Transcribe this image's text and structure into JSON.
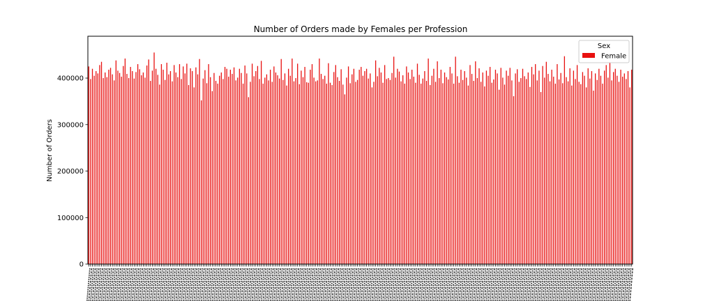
{
  "chart_data": {
    "type": "bar",
    "title": "Number of Orders made by Females per Profession",
    "xlabel": "",
    "ylabel": "Number of Orders",
    "ylim": [
      0,
      490000
    ],
    "yticks": [
      0,
      100000,
      200000,
      300000,
      400000
    ],
    "ytick_labels": [
      "0",
      "100000",
      "200000",
      "300000",
      "400000"
    ],
    "grid": false,
    "legend": {
      "title": "Sex",
      "placement": "top-right",
      "entries": [
        {
          "label": "Female",
          "color": "#e8100f"
        }
      ]
    },
    "bar_color": "#e8100f",
    "bar_count": 300,
    "values_note_min": 352000,
    "values_note_max": 455000,
    "series": [
      {
        "name": "Female",
        "values": [
          425000,
          398000,
          420000,
          405000,
          415000,
          410000,
          428000,
          435000,
          400000,
          412000,
          402000,
          418000,
          422000,
          408000,
          395000,
          438000,
          416000,
          411000,
          403000,
          426000,
          442000,
          409000,
          400000,
          424000,
          415000,
          399000,
          413000,
          430000,
          419000,
          406000,
          412000,
          401000,
          427000,
          440000,
          394000,
          416000,
          455000,
          420000,
          407000,
          386000,
          430000,
          418000,
          396000,
          433000,
          408000,
          415000,
          393000,
          428000,
          412000,
          402000,
          430000,
          398000,
          425000,
          410000,
          431000,
          385000,
          421000,
          415000,
          380000,
          423000,
          408000,
          441000,
          352000,
          399000,
          417000,
          389000,
          430000,
          402000,
          372000,
          411000,
          394000,
          388000,
          405000,
          412000,
          398000,
          424000,
          420000,
          403000,
          418000,
          409000,
          423000,
          395000,
          401000,
          420000,
          411000,
          388000,
          427000,
          410000,
          359000,
          392000,
          431000,
          404000,
          415000,
          426000,
          398000,
          437000,
          388000,
          401000,
          408000,
          395000,
          418000,
          392000,
          425000,
          412000,
          406000,
          399000,
          441000,
          396000,
          410000,
          384000,
          420000,
          405000,
          442000,
          393000,
          400000,
          431000,
          387000,
          416000,
          402000,
          424000,
          391000,
          390000,
          418000,
          430000,
          401000,
          393000,
          395000,
          442000,
          409000,
          398000,
          405000,
          388000,
          432000,
          390000,
          385000,
          413000,
          428000,
          402000,
          394000,
          419000,
          386000,
          365000,
          401000,
          425000,
          389000,
          408000,
          420000,
          392000,
          396000,
          418000,
          424000,
          405000,
          415000,
          420000,
          399000,
          410000,
          380000,
          392000,
          438000,
          404000,
          422000,
          412000,
          390000,
          428000,
          398000,
          400000,
          396000,
          411000,
          446000,
          401000,
          420000,
          414000,
          393000,
          406000,
          388000,
          425000,
          412000,
          398000,
          418000,
          403000,
          390000,
          431000,
          407000,
          388000,
          399000,
          415000,
          394000,
          442000,
          385000,
          405000,
          420000,
          392000,
          436000,
          400000,
          418000,
          389000,
          412000,
          402000,
          397000,
          424000,
          410000,
          388000,
          446000,
          404000,
          390000,
          418000,
          396000,
          415000,
          401000,
          384000,
          428000,
          409000,
          394000,
          436000,
          400000,
          421000,
          392000,
          412000,
          382000,
          416000,
          405000,
          424000,
          390000,
          397000,
          418000,
          410000,
          375000,
          422000,
          401000,
          386000,
          416000,
          405000,
          422000,
          395000,
          361000,
          410000,
          419000,
          392000,
          400000,
          420000,
          404000,
          398000,
          412000,
          381000,
          424000,
          408000,
          430000,
          395000,
          416000,
          370000,
          426000,
          401000,
          435000,
          409000,
          393000,
          418000,
          403000,
          388000,
          430000,
          397000,
          411000,
          389000,
          447000,
          402000,
          393000,
          421000,
          384000,
          416000,
          398000,
          428000,
          392000,
          387000,
          413000,
          405000,
          380000,
          421000,
          399000,
          415000,
          373000,
          410000,
          396000,
          420000,
          405000,
          388000,
          416000,
          428000,
          401000,
          438000,
          395000,
          413000,
          420000,
          405000,
          392000,
          418000,
          403000,
          410000,
          398000,
          415000,
          380000,
          418000
        ]
      }
    ]
  }
}
